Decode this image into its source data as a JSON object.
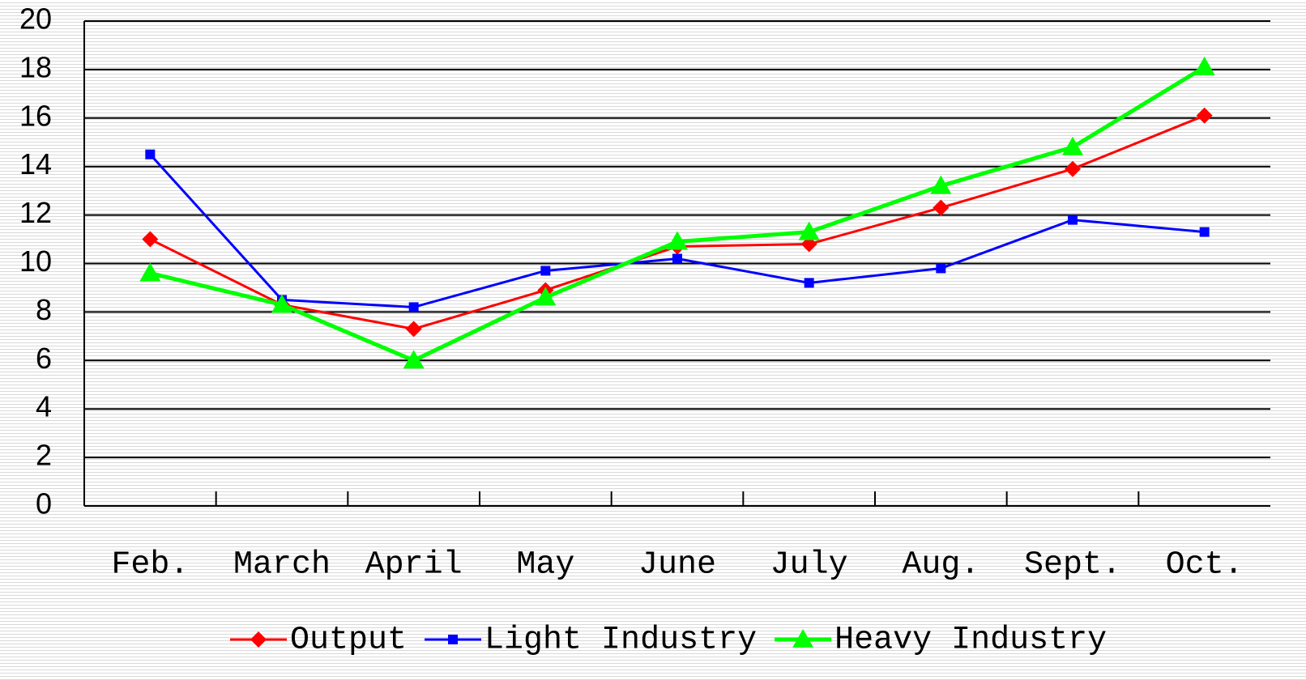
{
  "chart_data": {
    "type": "line",
    "categories": [
      "Feb.",
      "March",
      "April",
      "May",
      "June",
      "July",
      "Aug.",
      "Sept.",
      "Oct."
    ],
    "series": [
      {
        "name": "Output",
        "color": "#ff0000",
        "marker": "diamond",
        "values": [
          11.0,
          8.3,
          7.3,
          8.9,
          10.7,
          10.8,
          12.3,
          13.9,
          16.1
        ]
      },
      {
        "name": "Light Industry",
        "color": "#0000ff",
        "marker": "square",
        "values": [
          14.5,
          8.5,
          8.2,
          9.7,
          10.2,
          9.2,
          9.8,
          11.8,
          11.3
        ]
      },
      {
        "name": "Heavy Industry",
        "color": "#00ff00",
        "marker": "triangle",
        "values": [
          9.6,
          8.3,
          6.0,
          8.6,
          10.9,
          11.3,
          13.2,
          14.8,
          18.1
        ]
      }
    ],
    "ylim": [
      0,
      20
    ],
    "yticks": [
      0,
      2,
      4,
      6,
      8,
      10,
      12,
      14,
      16,
      18,
      20
    ],
    "grid": true,
    "legend": "bottom"
  }
}
